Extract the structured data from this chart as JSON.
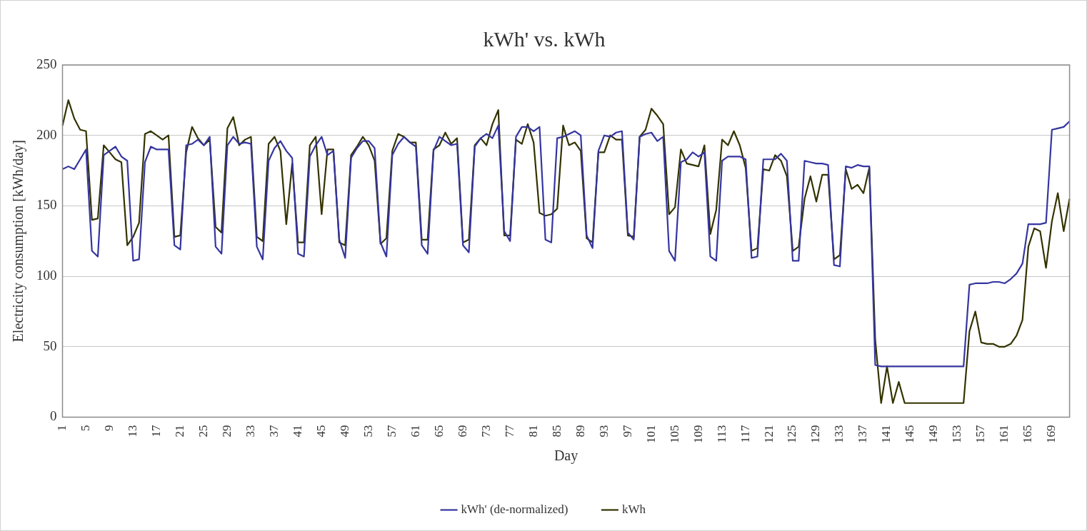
{
  "chart_data": {
    "type": "line",
    "title": "kWh' vs. kWh",
    "xlabel": "Day",
    "ylabel": "Electricity consumption [kWh/day]",
    "categories": [
      "1",
      null,
      null,
      null,
      "5",
      null,
      null,
      null,
      "9",
      null,
      null,
      null,
      "13",
      null,
      null,
      null,
      "17",
      null,
      null,
      null,
      "21",
      null,
      null,
      null,
      "25",
      null,
      null,
      null,
      "29",
      null,
      null,
      null,
      "33",
      null,
      null,
      null,
      "37",
      null,
      null,
      null,
      "41",
      null,
      null,
      null,
      "45",
      null,
      null,
      null,
      "49",
      null,
      null,
      null,
      "53",
      null,
      null,
      null,
      "57",
      null,
      null,
      null,
      "61",
      null,
      null,
      null,
      "65",
      null,
      null,
      null,
      "69",
      null,
      null,
      null,
      "73",
      null,
      null,
      null,
      "77",
      null,
      null,
      null,
      "81",
      null,
      null,
      null,
      "85",
      null,
      null,
      null,
      "89",
      null,
      null,
      null,
      "93",
      null,
      null,
      null,
      "97",
      null,
      null,
      null,
      "101",
      null,
      null,
      null,
      "105",
      null,
      null,
      null,
      "109",
      null,
      null,
      null,
      "113",
      null,
      null,
      null,
      "117",
      null,
      null,
      null,
      "121",
      null,
      null,
      null,
      "125",
      null,
      null,
      null,
      "129",
      null,
      null,
      null,
      "133",
      null,
      null,
      null,
      "137",
      null,
      null,
      null,
      "141",
      null,
      null,
      null,
      "145",
      null,
      null,
      null,
      "149",
      null,
      null,
      null,
      "153",
      null,
      null,
      null,
      "157",
      null,
      null,
      null,
      "161",
      null,
      null,
      null,
      "165",
      null,
      null,
      null,
      "169",
      null,
      null,
      null
    ],
    "series": [
      {
        "name": "kWh' (de-normalized)",
        "color": "#3535a0",
        "values": [
          176,
          178,
          176,
          183,
          190,
          118,
          114,
          186,
          189,
          192,
          185,
          182,
          111,
          112,
          181,
          192,
          190,
          190,
          190,
          122,
          119,
          193,
          194,
          197,
          193,
          199,
          121,
          116,
          193,
          199,
          194,
          195,
          194,
          121,
          112,
          182,
          191,
          196,
          189,
          184,
          116,
          114,
          185,
          193,
          199,
          186,
          189,
          126,
          113,
          184,
          191,
          196,
          196,
          191,
          124,
          114,
          186,
          194,
          199,
          195,
          192,
          122,
          116,
          189,
          199,
          196,
          193,
          194,
          122,
          117,
          192,
          198,
          201,
          198,
          207,
          132,
          125,
          199,
          206,
          206,
          203,
          206,
          126,
          124,
          198,
          199,
          201,
          203,
          200,
          129,
          120,
          189,
          200,
          199,
          202,
          203,
          131,
          126,
          199,
          201,
          202,
          196,
          199,
          118,
          111,
          181,
          183,
          188,
          185,
          188,
          114,
          111,
          182,
          185,
          185,
          185,
          183,
          113,
          114,
          183,
          183,
          183,
          187,
          182,
          111,
          111,
          182,
          181,
          180,
          180,
          179,
          108,
          107,
          178,
          177,
          179,
          178,
          178,
          37,
          36,
          36,
          36,
          36,
          36,
          36,
          36,
          36,
          36,
          36,
          36,
          36,
          36,
          36,
          36,
          94,
          95,
          95,
          95,
          96,
          96,
          95,
          98,
          102,
          109,
          137,
          137,
          137,
          138,
          204,
          205,
          206,
          210
        ]
      },
      {
        "name": "kWh",
        "color": "#333300",
        "values": [
          207,
          225,
          212,
          204,
          203,
          140,
          141,
          193,
          188,
          183,
          181,
          122,
          128,
          138,
          201,
          203,
          200,
          197,
          200,
          128,
          129,
          188,
          206,
          198,
          193,
          197,
          135,
          131,
          205,
          213,
          193,
          197,
          199,
          128,
          125,
          194,
          199,
          189,
          137,
          180,
          124,
          124,
          193,
          199,
          144,
          190,
          190,
          124,
          122,
          186,
          192,
          199,
          193,
          182,
          123,
          127,
          189,
          201,
          199,
          195,
          195,
          126,
          126,
          190,
          193,
          202,
          194,
          198,
          124,
          126,
          193,
          198,
          193,
          208,
          218,
          129,
          129,
          197,
          194,
          208,
          195,
          145,
          143,
          144,
          148,
          207,
          193,
          195,
          189,
          127,
          124,
          188,
          188,
          200,
          197,
          197,
          129,
          128,
          199,
          204,
          219,
          214,
          208,
          144,
          149,
          190,
          180,
          179,
          178,
          193,
          130,
          147,
          197,
          193,
          203,
          193,
          177,
          118,
          120,
          176,
          175,
          186,
          182,
          171,
          118,
          121,
          155,
          171,
          153,
          172,
          172,
          112,
          115,
          176,
          162,
          165,
          159,
          177,
          55,
          10,
          36,
          10,
          25,
          10,
          10,
          10,
          10,
          10,
          10,
          10,
          10,
          10,
          10,
          10,
          61,
          75,
          53,
          52,
          52,
          50,
          50,
          52,
          58,
          69,
          121,
          134,
          132,
          106,
          139,
          159,
          132,
          155
        ]
      }
    ],
    "ylim": [
      0,
      250
    ],
    "yticks": [
      0,
      50,
      100,
      150,
      200,
      250
    ],
    "grid": "y",
    "legend": "bottom"
  }
}
